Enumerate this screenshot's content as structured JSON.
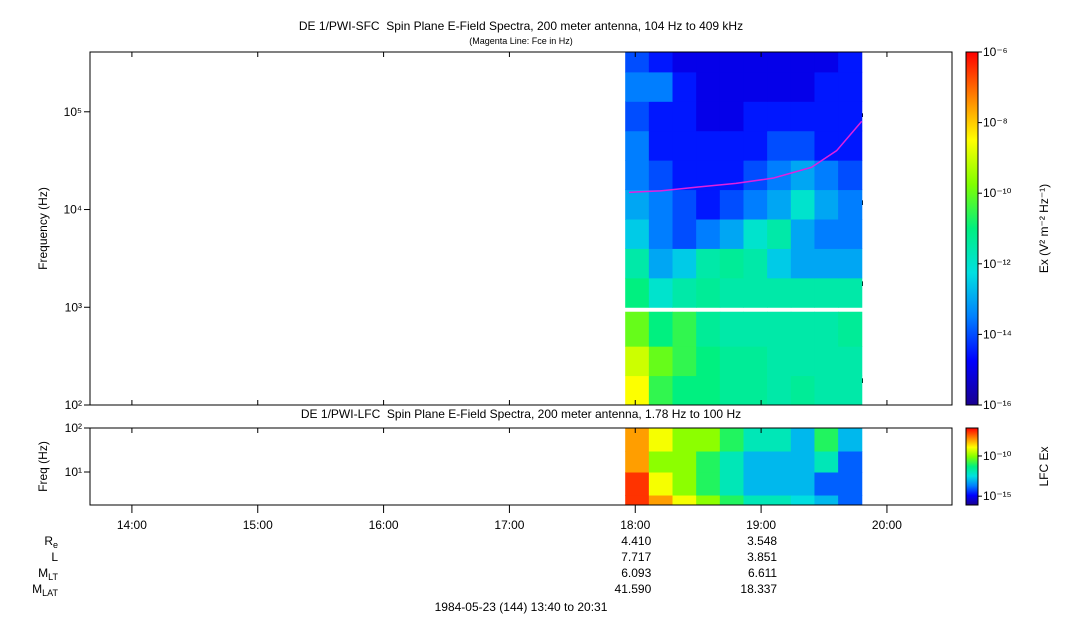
{
  "chart_data": [
    {
      "type": "spectrogram",
      "title": "DE 1/PWI-SFC  Spin Plane E-Field Spectra, 200 meter antenna, 104 Hz to 409 kHz",
      "subtitle": "(Magenta Line: Fce in Hz)",
      "ylabel": "Frequency (Hz)",
      "xlim": [
        13.667,
        20.517
      ],
      "xticks": [
        {
          "value": 14,
          "label": "14:00"
        },
        {
          "value": 15,
          "label": "15:00"
        },
        {
          "value": 16,
          "label": "16:00"
        },
        {
          "value": 17,
          "label": "17:00"
        },
        {
          "value": 18,
          "label": "18:00"
        },
        {
          "value": 19,
          "label": "19:00"
        },
        {
          "value": 20,
          "label": "20:00"
        }
      ],
      "xtick_labels": false,
      "ylim": [
        100,
        409000
      ],
      "ylog": true,
      "yticks": [
        {
          "value": 100,
          "label": "10²"
        },
        {
          "value": 1000,
          "label": "10³"
        },
        {
          "value": 10000,
          "label": "10⁴"
        },
        {
          "value": 100000,
          "label": "10⁵"
        }
      ],
      "time_edges": [
        17.92,
        18.108,
        18.296,
        18.484,
        18.672,
        18.86,
        19.048,
        19.236,
        19.424,
        19.612,
        19.8
      ],
      "bands": [
        {
          "freq_edges": [
            100,
            200,
            400,
            900
          ],
          "z": [
            [
              3e-09,
              3e-11,
              1e-11,
              1e-11,
              5e-12,
              5e-12,
              3e-12,
              5e-12,
              3e-12,
              3e-12
            ],
            [
              1e-09,
              1e-10,
              3e-11,
              1e-11,
              5e-12,
              5e-12,
              3e-12,
              3e-12,
              3e-12,
              3e-12
            ],
            [
              1e-10,
              1e-11,
              3e-11,
              5e-12,
              3e-12,
              3e-12,
              3e-12,
              3e-12,
              3e-12,
              5e-12
            ]
          ]
        },
        {
          "freq_edges": [
            1000,
            2000,
            4000,
            8000,
            16000,
            32000,
            64000,
            128000,
            256000,
            409000
          ],
          "z": [
            [
              1e-11,
              1e-12,
              3e-12,
              5e-12,
              3e-12,
              3e-12,
              3e-12,
              3e-12,
              3e-12,
              3e-12
            ],
            [
              3e-12,
              1e-13,
              3e-13,
              3e-12,
              5e-12,
              3e-12,
              3e-13,
              1e-13,
              1e-13,
              1e-13
            ],
            [
              3e-13,
              3e-14,
              1e-14,
              3e-14,
              1e-13,
              1e-12,
              3e-12,
              1e-13,
              3e-14,
              3e-14
            ],
            [
              1e-13,
              3e-14,
              1e-14,
              3e-15,
              1e-14,
              3e-14,
              1e-13,
              1e-12,
              1e-13,
              3e-14
            ],
            [
              3e-14,
              1e-14,
              3e-15,
              3e-15,
              3e-15,
              1e-14,
              3e-14,
              1e-13,
              3e-14,
              1e-14
            ],
            [
              3e-14,
              3e-15,
              3e-15,
              3e-15,
              3e-15,
              3e-15,
              1e-14,
              1e-14,
              3e-15,
              3e-15
            ],
            [
              1e-14,
              3e-15,
              3e-15,
              1e-15,
              1e-15,
              3e-15,
              3e-15,
              3e-15,
              3e-15,
              3e-15
            ],
            [
              3e-14,
              3e-14,
              3e-15,
              1e-15,
              1e-15,
              1e-15,
              1e-15,
              1e-15,
              3e-15,
              3e-15
            ],
            [
              1e-14,
              3e-15,
              1e-15,
              1e-15,
              1e-15,
              1e-15,
              1e-15,
              1e-15,
              1e-15,
              3e-15
            ]
          ]
        }
      ],
      "colormap": [
        "#1a0090",
        "#0000ff",
        "#0080ff",
        "#00e0e0",
        "#00f080",
        "#80ff00",
        "#ffff00",
        "#ff8000",
        "#ff0000"
      ],
      "colorbar": {
        "label": "Ex (V² m⁻² Hz⁻¹)",
        "lim": [
          1e-16,
          1e-06
        ],
        "log": true,
        "ticks": [
          {
            "value": 1e-16,
            "label": "10⁻¹⁶"
          },
          {
            "value": 1e-14,
            "label": "10⁻¹⁴"
          },
          {
            "value": 1e-12,
            "label": "10⁻¹²"
          },
          {
            "value": 1e-10,
            "label": "10⁻¹⁰"
          },
          {
            "value": 1e-08,
            "label": "10⁻⁸"
          },
          {
            "value": 1e-06,
            "label": "10⁻⁶"
          }
        ]
      },
      "overlay": {
        "color": "#e020e0",
        "x": [
          17.95,
          18.2,
          18.5,
          18.8,
          19.1,
          19.4,
          19.6,
          19.8
        ],
        "y": [
          15000,
          15500,
          17000,
          18500,
          21000,
          27000,
          40000,
          80000
        ]
      }
    },
    {
      "type": "spectrogram",
      "title": "DE 1/PWI-LFC  Spin Plane E-Field Spectra, 200 meter antenna, 1.78 Hz to 100 Hz",
      "ylabel": "Freq (Hz)",
      "xlim": [
        13.667,
        20.517
      ],
      "xticks": [
        {
          "value": 14,
          "label": "14:00"
        },
        {
          "value": 15,
          "label": "15:00"
        },
        {
          "value": 16,
          "label": "16:00"
        },
        {
          "value": 17,
          "label": "17:00"
        },
        {
          "value": 18,
          "label": "18:00"
        },
        {
          "value": 19,
          "label": "19:00"
        },
        {
          "value": 20,
          "label": "20:00"
        }
      ],
      "xtick_labels": true,
      "ylim": [
        1.78,
        100
      ],
      "ylog": true,
      "yticks": [
        {
          "value": 10,
          "label": "10¹"
        },
        {
          "value": 100,
          "label": "10²"
        }
      ],
      "time_edges": [
        17.92,
        18.108,
        18.296,
        18.484,
        18.672,
        18.86,
        19.048,
        19.236,
        19.424,
        19.612,
        19.8
      ],
      "bands": [
        {
          "freq_edges": [
            1.78,
            3,
            10,
            30,
            100
          ],
          "z": [
            [
              1e-07,
              1e-08,
              1e-09,
              1e-10,
              1e-11,
              1e-12,
              1e-12,
              3e-13,
              1e-13,
              1e-14
            ],
            [
              1e-07,
              1e-09,
              1e-10,
              1e-11,
              1e-12,
              1e-13,
              1e-13,
              1e-13,
              1e-14,
              1e-14
            ],
            [
              1e-08,
              1e-10,
              1e-10,
              1e-11,
              1e-12,
              1e-13,
              1e-13,
              1e-13,
              1e-12,
              1e-14
            ],
            [
              1e-08,
              1e-09,
              1e-10,
              1e-10,
              1e-11,
              1e-12,
              1e-12,
              1e-13,
              1e-11,
              1e-13
            ]
          ]
        }
      ],
      "colormap": [
        "#1a0090",
        "#0000ff",
        "#0080ff",
        "#00e0e0",
        "#00f080",
        "#80ff00",
        "#ffff00",
        "#ff8000",
        "#ff0000"
      ],
      "colorbar": {
        "label": "LFC Ex",
        "lim": [
          8e-17,
          3e-07
        ],
        "log": true,
        "ticks": [
          {
            "value": 1e-15,
            "label": "10⁻¹⁵"
          },
          {
            "value": 1e-10,
            "label": "10⁻¹⁰"
          }
        ]
      }
    }
  ],
  "ephemeris": {
    "times": [
      18,
      19
    ],
    "rows": [
      {
        "name": "R",
        "sub": "e",
        "values": [
          "4.410",
          "3.548"
        ]
      },
      {
        "name": "L",
        "values": [
          "7.717",
          "3.851"
        ]
      },
      {
        "name": "M",
        "sub": "LT",
        "values": [
          "6.093",
          "6.611"
        ]
      },
      {
        "name": "M",
        "sub": "LAT",
        "values": [
          "41.590",
          "18.337"
        ]
      }
    ]
  },
  "footer": "1984-05-23 (144) 13:40 to 20:31"
}
